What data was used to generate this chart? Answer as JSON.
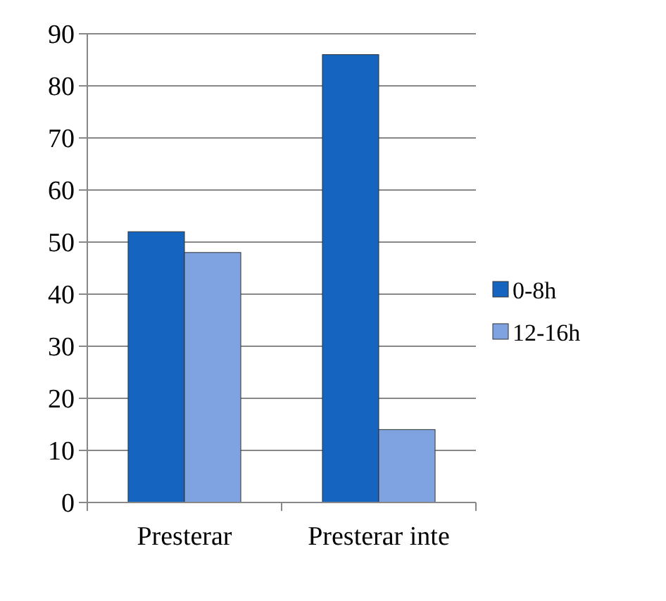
{
  "chart_data": {
    "type": "bar",
    "categories": [
      "Presterar",
      "Presterar inte"
    ],
    "series": [
      {
        "name": "0-8h",
        "color": "#1565c0",
        "values": [
          52,
          86
        ]
      },
      {
        "name": "12-16h",
        "color": "#7fa3e0",
        "values": [
          48,
          14
        ]
      }
    ],
    "ylim": [
      0,
      90
    ],
    "yticks": [
      0,
      10,
      20,
      30,
      40,
      50,
      60,
      70,
      80,
      90
    ],
    "grid": "y",
    "legend": "right"
  }
}
